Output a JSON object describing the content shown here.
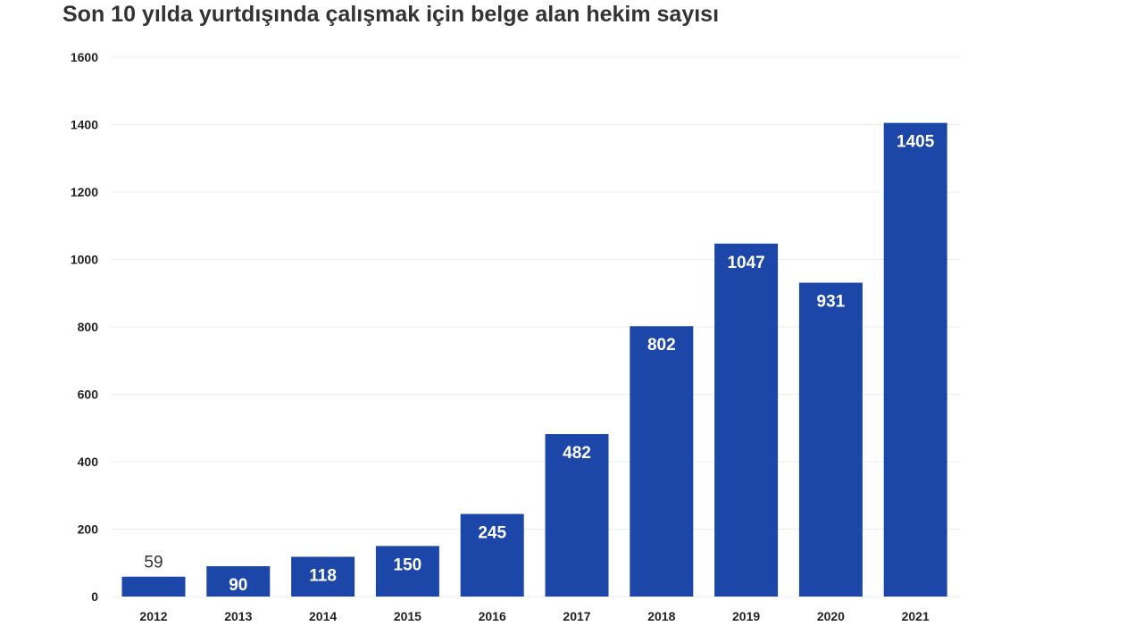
{
  "chart_data": {
    "type": "bar",
    "title": "Son 10 yılda yurtdışında çalışmak için belge alan hekim sayısı",
    "categories": [
      "2012",
      "2013",
      "2014",
      "2015",
      "2016",
      "2017",
      "2018",
      "2019",
      "2020",
      "2021"
    ],
    "values": [
      59,
      90,
      118,
      150,
      245,
      482,
      802,
      1047,
      931,
      1405
    ],
    "ylim": [
      0,
      1600
    ],
    "yticks": [
      "0",
      "200",
      "400",
      "600",
      "800",
      "1000",
      "1200",
      "1400",
      "1600"
    ],
    "grid": true,
    "legend": "none",
    "colors": {
      "bar": "#1c47a8",
      "grid": "#ececec"
    }
  }
}
